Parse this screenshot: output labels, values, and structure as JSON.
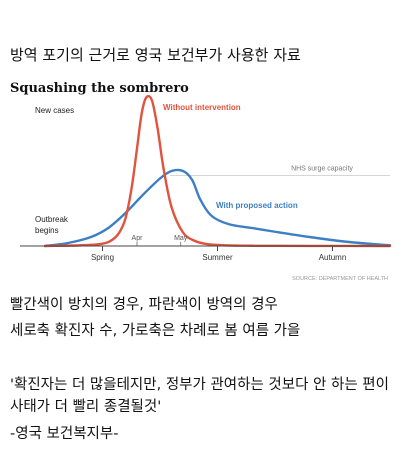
{
  "heading": "방역 포기의 근거로 영국 보건부가 사용한 자료",
  "chart_data": {
    "type": "line",
    "title": "Squashing the sombrero",
    "ylabel": "New cases",
    "x_ticks": [
      "Spring",
      "Summer",
      "Autumn"
    ],
    "x_sub_ticks": [
      "Apr",
      "May"
    ],
    "threshold": {
      "label": "NHS surge capacity",
      "value": 0.47
    },
    "annotation": "Outbreak begins",
    "source": "SOURCE: DEPARTMENT OF HEALTH",
    "ylim": [
      0,
      1
    ],
    "series": [
      {
        "name": "Without intervention",
        "color": "#e0533d",
        "x": [
          0,
          0.45,
          0.6,
          0.68,
          0.72,
          0.76,
          0.8,
          0.84,
          0.88,
          0.93,
          0.98,
          1.03,
          1.1,
          1.2,
          1.3,
          1.4,
          1.55,
          1.75,
          2.0,
          2.5,
          3.0
        ],
        "y": [
          0,
          0.01,
          0.05,
          0.14,
          0.25,
          0.42,
          0.65,
          0.88,
          0.99,
          0.97,
          0.78,
          0.52,
          0.26,
          0.09,
          0.035,
          0.014,
          0.005,
          0.002,
          0.001,
          0.0005,
          0
        ]
      },
      {
        "name": "With proposed action",
        "color": "#3d7fc4",
        "x": [
          0,
          0.2,
          0.4,
          0.55,
          0.7,
          0.85,
          1.0,
          1.1,
          1.2,
          1.28,
          1.35,
          1.45,
          1.6,
          1.8,
          2.0,
          2.3,
          2.6,
          2.9,
          3.0
        ],
        "y": [
          0,
          0.02,
          0.06,
          0.12,
          0.22,
          0.34,
          0.45,
          0.5,
          0.5,
          0.44,
          0.31,
          0.2,
          0.145,
          0.12,
          0.095,
          0.06,
          0.03,
          0.01,
          0.005
        ]
      }
    ],
    "xlim": [
      0,
      3
    ]
  },
  "captions": {
    "line1": "빨간색이 방치의 경우, 파란색이 방역의 경우",
    "line2": "세로축 확진자 수, 가로축은 차례로 봄 여름 가을",
    "line3": "'확진자는 더 많을테지만, 정부가 관여하는 것보다 안 하는 편이",
    "line4": "사태가 더 빨리 종결될것'",
    "line5": "-영국 보건복지부-"
  }
}
